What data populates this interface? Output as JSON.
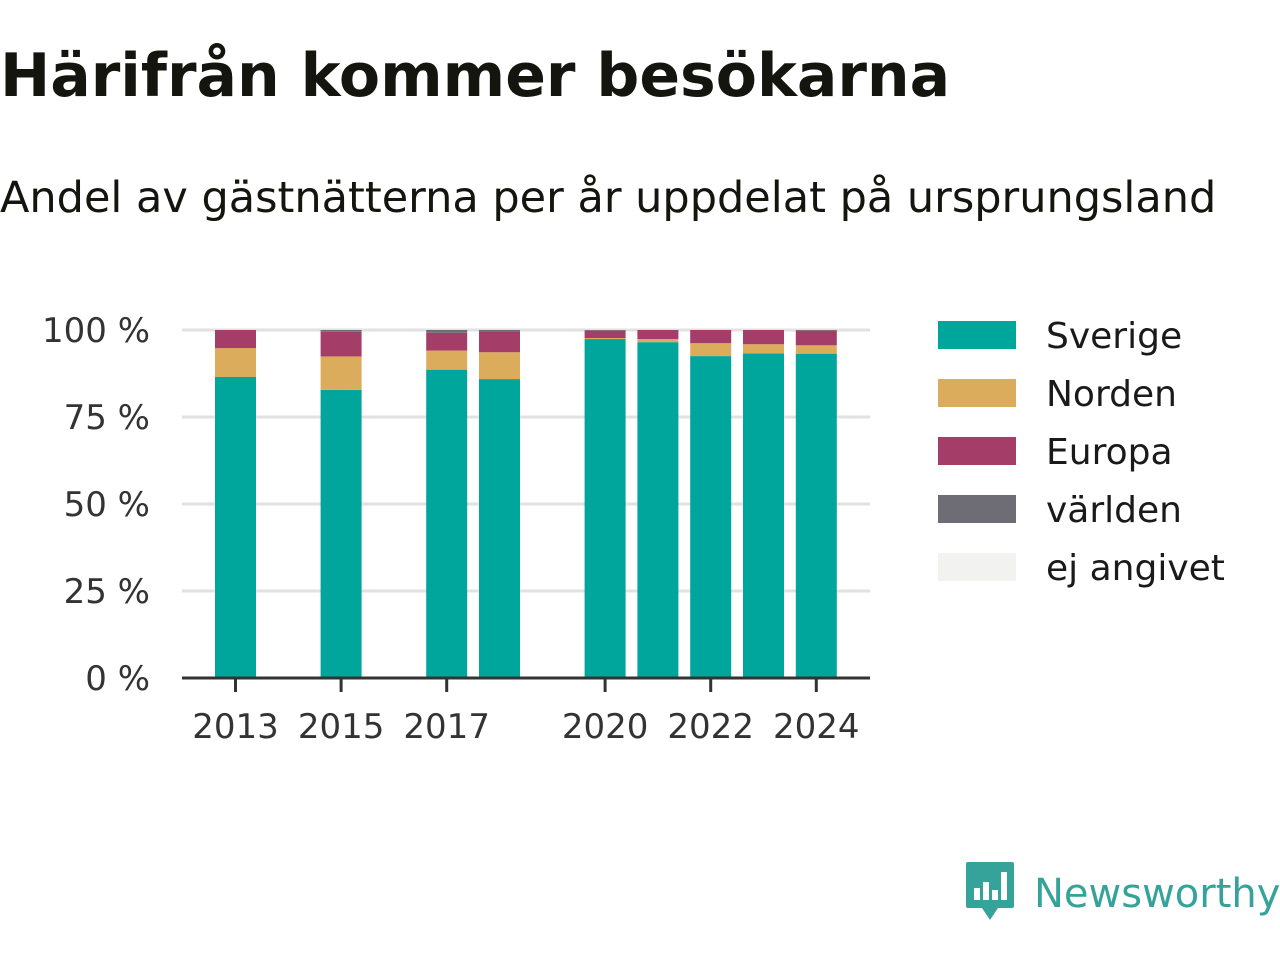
{
  "header": {
    "title": "Härifrån kommer besökarna",
    "subtitle": "Andel av gästnätterna per år uppdelat på ursprungsland"
  },
  "brand": {
    "name": "Newsworthy",
    "color": "#35a39a"
  },
  "chart_data": {
    "type": "bar",
    "stacked": true,
    "categories": [
      "2013",
      "2014",
      "2015",
      "2016",
      "2017",
      "2018",
      "2019",
      "2020",
      "2021",
      "2022",
      "2023",
      "2024"
    ],
    "x_tick_labels": [
      "2013",
      "2015",
      "2017",
      "2020",
      "2022",
      "2024"
    ],
    "y_tick_labels": [
      "0 %",
      "25 %",
      "50 %",
      "75 %",
      "100 %"
    ],
    "ylim": [
      0,
      100
    ],
    "grid": true,
    "legend_position": "right",
    "series": [
      {
        "name": "Sverige",
        "color": "#00a59b",
        "values": [
          86.5,
          null,
          82.8,
          null,
          88.6,
          85.9,
          null,
          97.4,
          96.5,
          92.5,
          93.3,
          93.2
        ]
      },
      {
        "name": "Norden",
        "color": "#dcac5d",
        "values": [
          8.3,
          null,
          9.6,
          null,
          5.5,
          7.7,
          null,
          0.3,
          0.9,
          3.7,
          2.6,
          2.4
        ]
      },
      {
        "name": "Europa",
        "color": "#a53d69",
        "values": [
          5.2,
          null,
          7.1,
          null,
          5.1,
          6.0,
          null,
          2.1,
          2.6,
          3.8,
          4.1,
          4.2
        ]
      },
      {
        "name": "världen",
        "color": "#6e6c75",
        "values": [
          0,
          null,
          0.5,
          null,
          0.8,
          0.4,
          null,
          0.2,
          0,
          0,
          0,
          0.2
        ]
      },
      {
        "name": "ej angivet",
        "color": "#f2f2f0",
        "values": [
          0,
          null,
          0,
          null,
          0,
          0,
          null,
          0,
          0,
          0,
          0,
          0
        ]
      }
    ]
  }
}
